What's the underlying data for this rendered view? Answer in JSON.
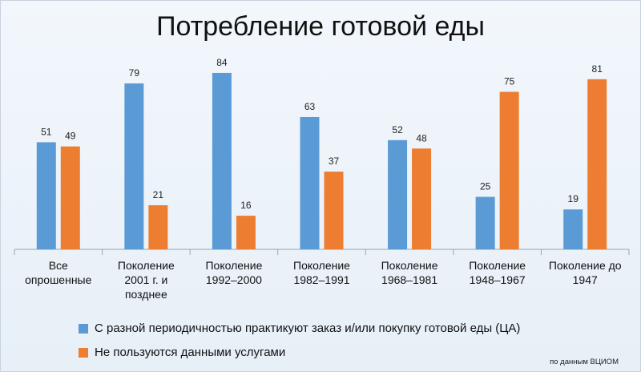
{
  "chart_data": {
    "type": "bar",
    "title": "Потребление готовой еды",
    "categories": [
      [
        "Все",
        "опрошенные"
      ],
      [
        "Поколение",
        "2001 г. и",
        "позднее"
      ],
      [
        "Поколение",
        "1992–2000"
      ],
      [
        "Поколение",
        "1982–1991"
      ],
      [
        "Поколение",
        "1968–1981"
      ],
      [
        "Поколение",
        "1948–1967"
      ],
      [
        "Поколение до",
        "1947"
      ]
    ],
    "series": [
      {
        "name": "С разной периодичностью практикуют заказ и/или покупку готовой еды (ЦА)",
        "color": "#5b9bd5",
        "values": [
          51,
          79,
          84,
          63,
          52,
          25,
          19
        ]
      },
      {
        "name": "Не пользуются данными услугами",
        "color": "#ed7d31",
        "values": [
          49,
          21,
          16,
          37,
          48,
          75,
          81
        ]
      }
    ],
    "ylim": [
      0,
      92
    ],
    "xlabel": "",
    "ylabel": "",
    "grid": false,
    "legend_position": "bottom"
  },
  "source": "по данным ВЦИОМ"
}
